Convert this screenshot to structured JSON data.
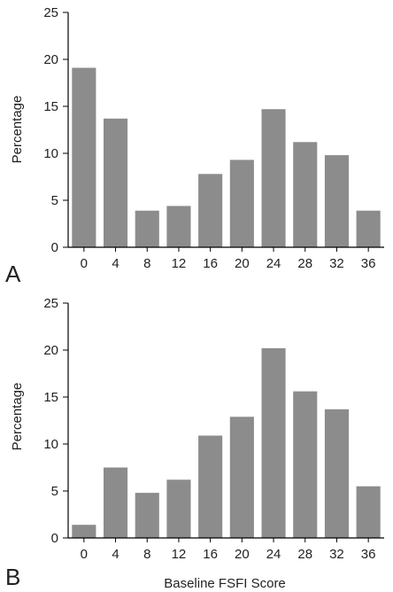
{
  "chart_data": [
    {
      "type": "bar",
      "panel_label": "A",
      "categories": [
        "0",
        "4",
        "8",
        "12",
        "16",
        "20",
        "24",
        "28",
        "32",
        "36"
      ],
      "values": [
        19.1,
        13.7,
        3.9,
        4.4,
        7.8,
        9.3,
        14.7,
        11.2,
        9.8,
        3.9
      ],
      "ylabel": "Percentage",
      "xlabel": "",
      "ylim": [
        0,
        25
      ],
      "yticks": [
        "0",
        "5",
        "10",
        "15",
        "20",
        "25"
      ],
      "grid": false,
      "bar_color": "#8c8c8c"
    },
    {
      "type": "bar",
      "panel_label": "B",
      "categories": [
        "0",
        "4",
        "8",
        "12",
        "16",
        "20",
        "24",
        "28",
        "32",
        "36"
      ],
      "values": [
        1.4,
        7.5,
        4.8,
        6.2,
        10.9,
        12.9,
        20.2,
        15.6,
        13.7,
        5.5
      ],
      "ylabel": "Percentage",
      "xlabel": "Baseline FSFI Score",
      "ylim": [
        0,
        25
      ],
      "yticks": [
        "0",
        "5",
        "10",
        "15",
        "20",
        "25"
      ],
      "grid": false,
      "bar_color": "#8c8c8c"
    }
  ]
}
